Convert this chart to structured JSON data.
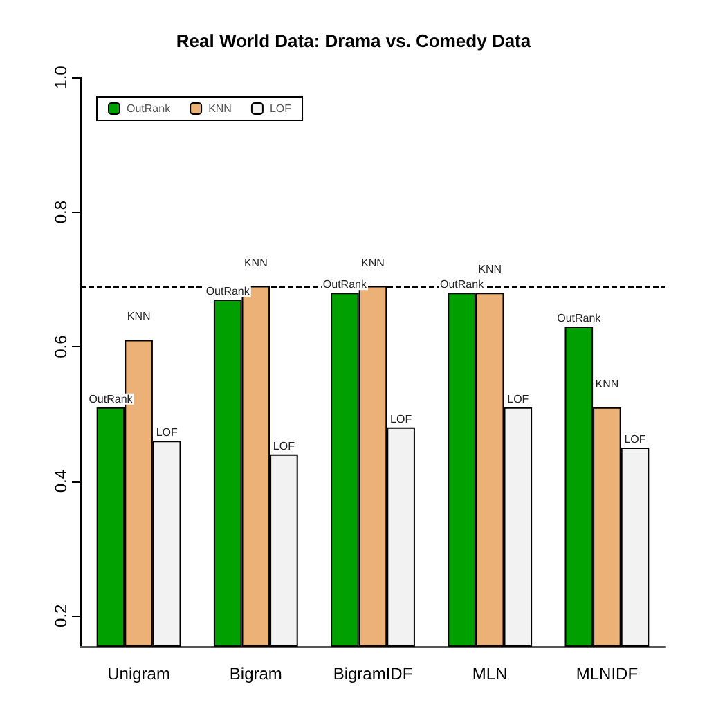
{
  "chart_data": {
    "type": "bar",
    "title": "Real World Data: Drama vs. Comedy Data",
    "categories": [
      "Unigram",
      "Bigram",
      "BigramIDF",
      "MLN",
      "MLNIDF"
    ],
    "series": [
      {
        "name": "OutRank",
        "color": "#00a000",
        "values": [
          0.51,
          0.67,
          0.68,
          0.68,
          0.63
        ],
        "value_labels": [
          "OutRank",
          "OutRank",
          "OutRank",
          "OutRank",
          "OutRank"
        ]
      },
      {
        "name": "KNN",
        "color": "#ebb176",
        "values": [
          0.61,
          0.69,
          0.69,
          0.68,
          0.51
        ],
        "value_labels": [
          "KNN",
          "KNN",
          "KNN",
          "KNN",
          "KNN"
        ]
      },
      {
        "name": "LOF",
        "color": "#f2f2f2",
        "values": [
          0.46,
          0.44,
          0.48,
          0.51,
          0.45
        ],
        "value_labels": [
          "LOF",
          "LOF",
          "LOF",
          "LOF",
          "LOF"
        ]
      }
    ],
    "ylim": [
      0.155,
      1
    ],
    "yticks": [
      0.2,
      0.4,
      0.6,
      0.8,
      {
        "value": 1,
        "label": "1.0"
      }
    ],
    "ref_lines": [
      {
        "axis": "y",
        "value": 0.69,
        "line_style": "dashed"
      }
    ],
    "grid": false,
    "legend": "top left"
  }
}
